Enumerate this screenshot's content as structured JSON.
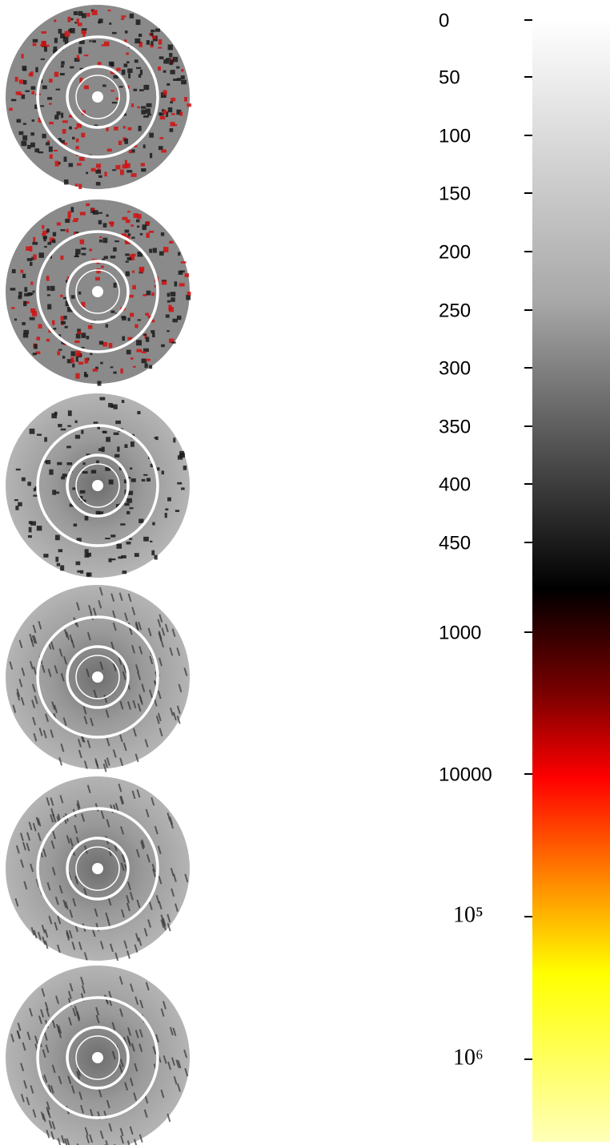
{
  "colorbar": {
    "ticks": [
      "0",
      "50",
      "100",
      "150",
      "200",
      "250",
      "300",
      "350",
      "400",
      "450",
      "1000",
      "10000",
      "10⁵",
      "10⁶"
    ]
  }
}
